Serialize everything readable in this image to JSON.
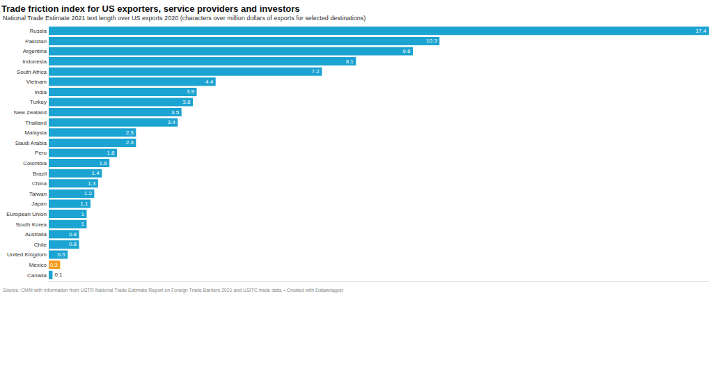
{
  "chart_data": {
    "type": "bar",
    "orientation": "horizontal",
    "title": "Trade friction index for US exporters, service providers and investors",
    "subtitle": "National Trade Estimate 2021 text length over US exports 2020 (characters over million dollars of exports for selected destinations)",
    "source": "Source: CMM with information from USTR National Trade Estimate Report on Foreign Trade Barriers 2021 and USITC trade data. • Created with Datawrapper",
    "categories": [
      "Russia",
      "Pakistan",
      "Argentina",
      "Indonesia",
      "South Africa",
      "Vietnam",
      "India",
      "Turkey",
      "New Zealand",
      "Thailand",
      "Malaysia",
      "Saudi Arabia",
      "Peru",
      "Colombia",
      "Brazil",
      "China",
      "Taiwan",
      "Japan",
      "European Union",
      "South Korea",
      "Australia",
      "Chile",
      "United Kingdom",
      "Mexico",
      "Canada"
    ],
    "values": [
      17.4,
      10.3,
      9.6,
      8.1,
      7.2,
      4.4,
      3.9,
      3.8,
      3.5,
      3.4,
      2.3,
      2.3,
      1.8,
      1.6,
      1.4,
      1.3,
      1.2,
      1.1,
      1,
      1,
      0.8,
      0.8,
      0.5,
      0.3,
      0.1
    ],
    "colors": [
      "#1ba3d1",
      "#1ba3d1",
      "#1ba3d1",
      "#1ba3d1",
      "#1ba3d1",
      "#1ba3d1",
      "#1ba3d1",
      "#1ba3d1",
      "#1ba3d1",
      "#1ba3d1",
      "#1ba3d1",
      "#1ba3d1",
      "#1ba3d1",
      "#1ba3d1",
      "#1ba3d1",
      "#1ba3d1",
      "#1ba3d1",
      "#1ba3d1",
      "#1ba3d1",
      "#1ba3d1",
      "#1ba3d1",
      "#1ba3d1",
      "#1ba3d1",
      "#f59b1c",
      "#1ba3d1"
    ],
    "xlim": [
      0,
      17.4
    ],
    "xticks": [],
    "grid": false,
    "data_labels": true,
    "tick_labels": "y"
  }
}
